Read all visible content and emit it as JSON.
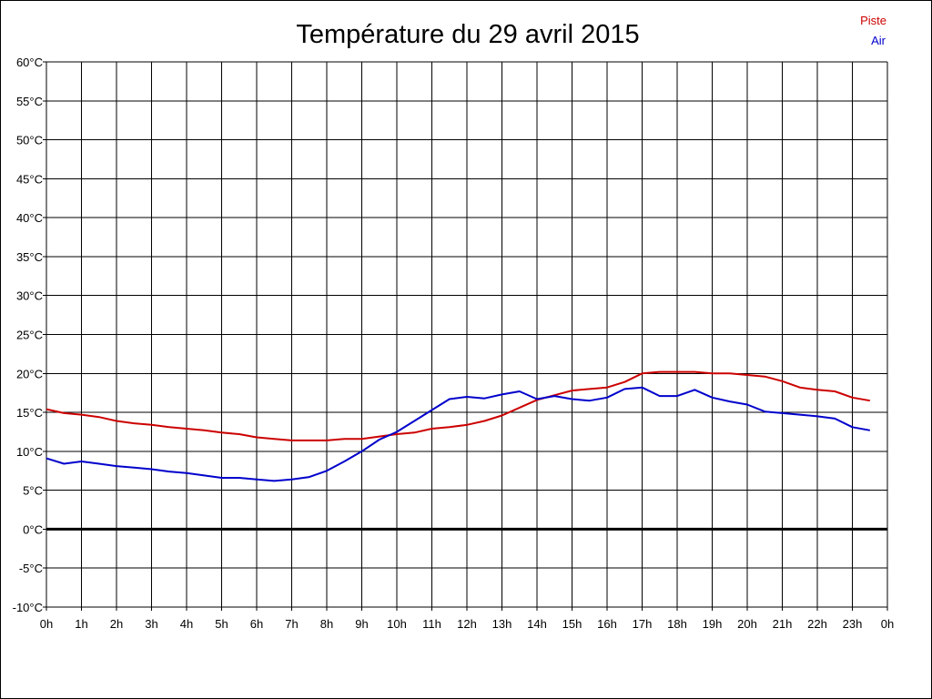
{
  "chart_data": {
    "type": "line",
    "title": "Température du 29 avril 2015",
    "xlabel": "",
    "ylabel": "",
    "ylim": [
      -10,
      60
    ],
    "y_ticks": [
      60,
      55,
      50,
      45,
      40,
      35,
      30,
      25,
      20,
      15,
      10,
      5,
      0,
      -5,
      -10
    ],
    "y_tick_labels": [
      "60°C",
      "55°C",
      "50°C",
      "45°C",
      "40°C",
      "35°C",
      "30°C",
      "25°C",
      "20°C",
      "15°C",
      "10°C",
      "5°C",
      "0°C",
      "-5°C",
      "-10°C"
    ],
    "x_ticks": [
      0,
      1,
      2,
      3,
      4,
      5,
      6,
      7,
      8,
      9,
      10,
      11,
      12,
      13,
      14,
      15,
      16,
      17,
      18,
      19,
      20,
      21,
      22,
      23,
      24
    ],
    "x_tick_labels": [
      "0h",
      "1h",
      "2h",
      "3h",
      "4h",
      "5h",
      "6h",
      "7h",
      "8h",
      "9h",
      "10h",
      "11h",
      "12h",
      "13h",
      "14h",
      "15h",
      "16h",
      "17h",
      "18h",
      "19h",
      "20h",
      "21h",
      "22h",
      "23h",
      "0h"
    ],
    "grid": true,
    "legend_position": "top-right",
    "zero_line": true,
    "series": [
      {
        "name": "Piste",
        "color": "#cc0000",
        "x": [
          0,
          0.5,
          1,
          1.5,
          2,
          2.5,
          3,
          3.5,
          4,
          4.5,
          5,
          5.5,
          6,
          6.5,
          7,
          7.5,
          8,
          8.5,
          9,
          9.5,
          10,
          10.5,
          11,
          11.5,
          12,
          12.5,
          13,
          13.5,
          14,
          14.5,
          15,
          15.5,
          16,
          16.5,
          17,
          17.5,
          18,
          18.5,
          19,
          19.5,
          20,
          20.5,
          21,
          21.5,
          22,
          22.5,
          23,
          23.5
        ],
        "values": [
          15.4,
          14.9,
          14.7,
          14.4,
          13.9,
          13.6,
          13.4,
          13.1,
          12.9,
          12.7,
          12.4,
          12.2,
          11.8,
          11.6,
          11.4,
          11.4,
          11.4,
          11.6,
          11.6,
          11.9,
          12.2,
          12.4,
          12.9,
          13.1,
          13.4,
          13.9,
          14.6,
          15.6,
          16.6,
          17.2,
          17.8,
          18.0,
          18.2,
          18.9,
          20.0,
          20.2,
          20.2,
          20.2,
          20.0,
          20.0,
          19.8,
          19.6,
          19.0,
          18.2,
          17.9,
          17.7,
          16.9,
          16.5
        ]
      },
      {
        "name": "Air",
        "color": "#0000cc",
        "x": [
          0,
          0.5,
          1,
          1.5,
          2,
          2.5,
          3,
          3.5,
          4,
          4.5,
          5,
          5.5,
          6,
          6.5,
          7,
          7.5,
          8,
          8.5,
          9,
          9.5,
          10,
          10.5,
          11,
          11.5,
          12,
          12.5,
          13,
          13.5,
          14,
          14.5,
          15,
          15.5,
          16,
          16.5,
          17,
          17.5,
          18,
          18.5,
          19,
          19.5,
          20,
          20.5,
          21,
          21.5,
          22,
          22.5,
          23,
          23.5
        ],
        "values": [
          9.1,
          8.4,
          8.7,
          8.4,
          8.1,
          7.9,
          7.7,
          7.4,
          7.2,
          6.9,
          6.6,
          6.6,
          6.4,
          6.2,
          6.4,
          6.7,
          7.5,
          8.7,
          10.0,
          11.5,
          12.5,
          13.9,
          15.3,
          16.7,
          17.0,
          16.8,
          17.3,
          17.7,
          16.7,
          17.1,
          16.7,
          16.5,
          16.9,
          18.0,
          18.2,
          17.1,
          17.1,
          17.9,
          16.9,
          16.4,
          16.0,
          15.1,
          14.9,
          14.7,
          14.5,
          14.2,
          13.1,
          12.7
        ]
      }
    ]
  }
}
